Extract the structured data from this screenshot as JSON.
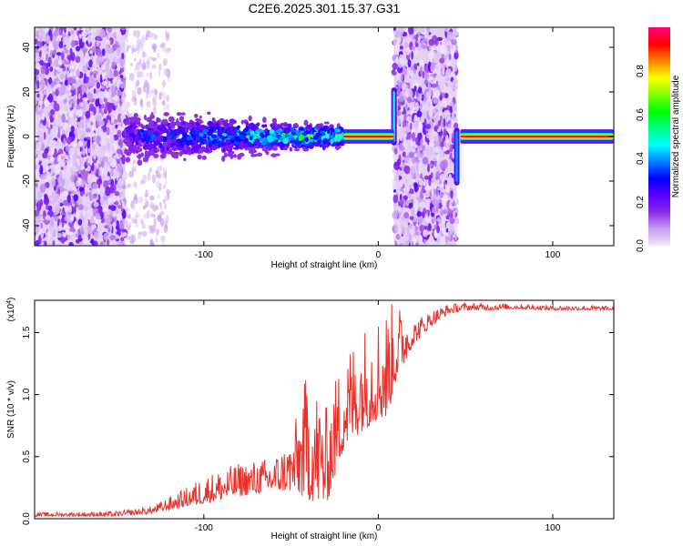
{
  "figure_title": "C2E6.2025.301.15.37.G31",
  "chart_data": [
    {
      "type": "heatmap",
      "title": "C2E6.2025.301.15.37.G31",
      "xlabel": "Height of straight line (km)",
      "ylabel": "Frequency (Hz)",
      "xlim": [
        -197,
        135
      ],
      "ylim": [
        -49,
        49
      ],
      "xticks": [
        {
          "value": -100,
          "label": "-100"
        },
        {
          "value": 0,
          "label": "0"
        },
        {
          "value": 100,
          "label": "100"
        }
      ],
      "yticks": [
        {
          "value": -40,
          "label": "-40"
        },
        {
          "value": -20,
          "label": "-20"
        },
        {
          "value": 0,
          "label": "0"
        },
        {
          "value": 20,
          "label": "20"
        },
        {
          "value": 40,
          "label": "40"
        }
      ],
      "colorbar": {
        "label": "Normalized spectral amplitude",
        "range": [
          0.0,
          1.0
        ],
        "ticks": [
          {
            "value": 0.0,
            "label": "0.0"
          },
          {
            "value": 0.2,
            "label": "0.2"
          },
          {
            "value": 0.4,
            "label": "0.4"
          },
          {
            "value": 0.6,
            "label": "0.6"
          },
          {
            "value": 0.8,
            "label": "0.8"
          }
        ],
        "stops": [
          "#f2e6fa",
          "#c79ef2",
          "#8a2be2",
          "#5a00ff",
          "#0000ff",
          "#0080ff",
          "#00ffff",
          "#00ff80",
          "#00ff00",
          "#80ff00",
          "#ffff00",
          "#ff8000",
          "#ff0000",
          "#ff0080"
        ]
      },
      "features": [
        {
          "name": "diffuse noise",
          "x_range": [
            -197,
            -145
          ],
          "freq_range": [
            -49,
            49
          ],
          "amplitude": 0.15
        },
        {
          "name": "fading noise",
          "x_range": [
            -145,
            -120
          ],
          "freq_range": [
            -49,
            49
          ],
          "amplitude": 0.08
        },
        {
          "name": "broadened tone",
          "x_range": [
            -145,
            -20
          ],
          "center_hz": 0,
          "half_width_hz": [
            9,
            4
          ],
          "amplitude_range": [
            0.25,
            0.55
          ]
        },
        {
          "name": "tone",
          "x_range": [
            -20,
            9
          ],
          "center_hz": 0,
          "amplitude": 0.95
        },
        {
          "name": "noise band",
          "x_range": [
            9,
            45
          ],
          "freq_range": [
            -49,
            49
          ],
          "amplitude": 0.15
        },
        {
          "name": "edge spike",
          "x_value": 9,
          "freq_range": [
            -4,
            22
          ],
          "amplitude": 0.5
        },
        {
          "name": "edge spike",
          "x_value": 45,
          "freq_range": [
            -22,
            4
          ],
          "amplitude": 0.4
        },
        {
          "name": "tone",
          "x_range": [
            47,
            135
          ],
          "center_hz": 0,
          "amplitude": 0.97
        }
      ]
    },
    {
      "type": "line",
      "xlabel": "Height of straight line (km)",
      "ylabel": "SNR (10 * v/v)",
      "y_multiplier": "(x10^4)",
      "multiplier_base": "(x10",
      "multiplier_exp": "4",
      "multiplier_close": ")",
      "xlim": [
        -197,
        135
      ],
      "ylim": [
        0,
        1.76
      ],
      "xticks": [
        {
          "value": -100,
          "label": "-100"
        },
        {
          "value": 0,
          "label": "0"
        },
        {
          "value": 100,
          "label": "100"
        }
      ],
      "yticks": [
        {
          "value": 0.0,
          "label": "0.0"
        },
        {
          "value": 0.5,
          "label": "0.5"
        },
        {
          "value": 1.0,
          "label": "1.0"
        },
        {
          "value": 1.5,
          "label": "1.5"
        }
      ],
      "series": [
        {
          "name": "SNR",
          "color": "#e8312b",
          "envelope": {
            "x": [
              -197,
              -150,
              -130,
              -110,
              -100,
              -80,
              -60,
              -50,
              -40,
              -30,
              -20,
              -10,
              0,
              5,
              10,
              20,
              30,
              40,
              50,
              60,
              80,
              100,
              120,
              135
            ],
            "base": [
              0.02,
              0.02,
              0.04,
              0.1,
              0.12,
              0.18,
              0.22,
              0.22,
              0.15,
              0.1,
              0.55,
              0.7,
              0.8,
              0.8,
              1.1,
              1.4,
              1.55,
              1.65,
              1.68,
              1.68,
              1.69,
              1.68,
              1.68,
              1.68
            ],
            "peak": [
              0.05,
              0.06,
              0.1,
              0.25,
              0.35,
              0.45,
              0.5,
              0.65,
              1.25,
              0.9,
              1.35,
              1.55,
              1.68,
              1.72,
              1.76,
              1.6,
              1.68,
              1.73,
              1.74,
              1.74,
              1.73,
              1.72,
              1.72,
              1.71
            ]
          }
        }
      ]
    }
  ]
}
